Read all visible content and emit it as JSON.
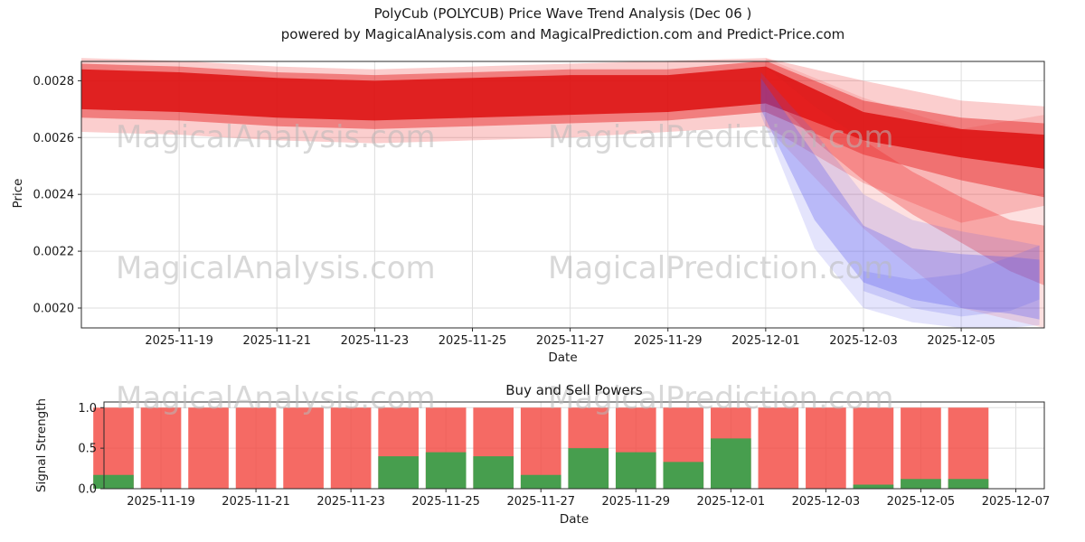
{
  "title": {
    "line1": "PolyCub (POLYCUB) Price Wave Trend Analysis (Dec 06 )",
    "line2": "powered by MagicalAnalysis.com and MagicalPrediction.com and Predict-Price.com"
  },
  "watermarks": {
    "analysis": "MagicalAnalysis.com",
    "prediction": "MagicalPrediction.com"
  },
  "chart_data": [
    {
      "type": "area",
      "title": "PolyCub (POLYCUB) Price Wave Trend Analysis (Dec 06 )",
      "xlabel": "Date",
      "ylabel": "Price",
      "x_unit": "days since 2025-11-17",
      "xlim": [
        0,
        19.7
      ],
      "ylim": [
        0.00193,
        0.002868
      ],
      "grid": true,
      "y_ticks": [
        0.002,
        0.0022,
        0.0024,
        0.0026,
        0.0028
      ],
      "x_ticks": [
        {
          "day": 2,
          "label": "2025-11-19"
        },
        {
          "day": 4,
          "label": "2025-11-21"
        },
        {
          "day": 6,
          "label": "2025-11-23"
        },
        {
          "day": 8,
          "label": "2025-11-25"
        },
        {
          "day": 10,
          "label": "2025-11-27"
        },
        {
          "day": 12,
          "label": "2025-11-29"
        },
        {
          "day": 14,
          "label": "2025-12-01"
        },
        {
          "day": 16,
          "label": "2025-12-03"
        },
        {
          "day": 18,
          "label": "2025-12-05"
        }
      ],
      "bands": [
        {
          "name": "red-outer",
          "color": "#ee2222",
          "opacity": 0.22,
          "x": [
            0,
            2,
            4,
            6,
            8,
            10,
            12,
            14,
            16,
            18,
            19.7
          ],
          "upper": [
            0.00288,
            0.00287,
            0.00285,
            0.00284,
            0.00285,
            0.00286,
            0.00287,
            0.00288,
            0.0028,
            0.00273,
            0.00271
          ],
          "lower": [
            0.00262,
            0.00261,
            0.00259,
            0.00258,
            0.00259,
            0.0026,
            0.00262,
            0.00264,
            0.00244,
            0.0023,
            0.00236
          ]
        },
        {
          "name": "red-fan-wide",
          "color": "#ee2222",
          "opacity": 0.14,
          "x": [
            14,
            16,
            18,
            19.7
          ],
          "upper": [
            0.00288,
            0.00274,
            0.00263,
            0.00268
          ],
          "lower": [
            0.00264,
            0.00228,
            0.002,
            0.00193
          ]
        },
        {
          "name": "red-mid",
          "color": "#e51d1d",
          "opacity": 0.45,
          "x": [
            0,
            2,
            4,
            6,
            8,
            10,
            12,
            14,
            16,
            18,
            19.7
          ],
          "upper": [
            0.00286,
            0.00285,
            0.00283,
            0.00282,
            0.00283,
            0.00284,
            0.00284,
            0.00287,
            0.00273,
            0.00267,
            0.00265
          ],
          "lower": [
            0.00267,
            0.00266,
            0.00264,
            0.00263,
            0.00264,
            0.00265,
            0.00266,
            0.00269,
            0.00254,
            0.00245,
            0.00239
          ]
        },
        {
          "name": "red-core",
          "color": "#dd1111",
          "opacity": 0.85,
          "x": [
            0,
            2,
            4,
            6,
            8,
            10,
            12,
            14,
            16,
            18,
            19.7
          ],
          "upper": [
            0.00284,
            0.00283,
            0.00281,
            0.0028,
            0.00281,
            0.00282,
            0.00282,
            0.00285,
            0.00269,
            0.00263,
            0.00261
          ],
          "lower": [
            0.0027,
            0.00269,
            0.00267,
            0.00266,
            0.00267,
            0.00268,
            0.00269,
            0.00272,
            0.00259,
            0.00253,
            0.00249
          ]
        },
        {
          "name": "red-cross",
          "color": "#ee2222",
          "opacity": 0.3,
          "x": [
            14,
            15,
            16,
            17,
            18,
            19,
            19.7
          ],
          "upper": [
            0.00285,
            0.00271,
            0.00259,
            0.00248,
            0.00239,
            0.00231,
            0.00229
          ],
          "lower": [
            0.00277,
            0.00259,
            0.00245,
            0.00233,
            0.00223,
            0.00213,
            0.00208
          ]
        },
        {
          "name": "blue-wide",
          "color": "#5555ee",
          "opacity": 0.16,
          "x": [
            13.9,
            15,
            16,
            17,
            18,
            19,
            19.6
          ],
          "upper": [
            0.00283,
            0.00262,
            0.0024,
            0.00231,
            0.00227,
            0.00224,
            0.00222
          ],
          "lower": [
            0.00268,
            0.00221,
            0.002,
            0.00195,
            0.00193,
            0.00193,
            0.00194
          ]
        },
        {
          "name": "blue-mid",
          "color": "#5555ee",
          "opacity": 0.3,
          "x": [
            13.9,
            15,
            16,
            17,
            18,
            19,
            19.6
          ],
          "upper": [
            0.00281,
            0.00254,
            0.00229,
            0.00221,
            0.00219,
            0.00218,
            0.00217
          ],
          "lower": [
            0.0027,
            0.00231,
            0.00209,
            0.00203,
            0.002,
            0.00198,
            0.00196
          ]
        },
        {
          "name": "blue-cross",
          "color": "#6666ee",
          "opacity": 0.22,
          "x": [
            16,
            17,
            18,
            19,
            19.6
          ],
          "upper": [
            0.00213,
            0.0021,
            0.00212,
            0.00218,
            0.00222
          ],
          "lower": [
            0.00206,
            0.002,
            0.00197,
            0.00199,
            0.00203
          ]
        }
      ]
    },
    {
      "type": "bar",
      "title": "Buy and Sell Powers",
      "xlabel": "Date",
      "ylabel": "Signal Strength",
      "x_unit": "days since 2025-11-17",
      "xlim": [
        0.8,
        20.6
      ],
      "ylim": [
        0,
        1.07
      ],
      "grid": true,
      "bar_width": 0.85,
      "colors": {
        "sell": "#f2453d",
        "buy": "#3da14d"
      },
      "y_ticks": [
        0.0,
        0.5,
        1.0
      ],
      "x_ticks": [
        {
          "day": 2,
          "label": "2025-11-19"
        },
        {
          "day": 4,
          "label": "2025-11-21"
        },
        {
          "day": 6,
          "label": "2025-11-23"
        },
        {
          "day": 8,
          "label": "2025-11-25"
        },
        {
          "day": 10,
          "label": "2025-11-27"
        },
        {
          "day": 12,
          "label": "2025-11-29"
        },
        {
          "day": 14,
          "label": "2025-12-01"
        },
        {
          "day": 16,
          "label": "2025-12-03"
        },
        {
          "day": 18,
          "label": "2025-12-05"
        },
        {
          "day": 20,
          "label": "2025-12-07"
        }
      ],
      "bars": [
        {
          "day": 1,
          "date": "2025-11-18",
          "sell": 1.0,
          "buy": 0.17
        },
        {
          "day": 2,
          "date": "2025-11-19",
          "sell": 1.0,
          "buy": 0.0
        },
        {
          "day": 3,
          "date": "2025-11-20",
          "sell": 1.0,
          "buy": 0.0
        },
        {
          "day": 4,
          "date": "2025-11-21",
          "sell": 1.0,
          "buy": 0.0
        },
        {
          "day": 5,
          "date": "2025-11-22",
          "sell": 1.0,
          "buy": 0.0
        },
        {
          "day": 6,
          "date": "2025-11-23",
          "sell": 1.0,
          "buy": 0.0
        },
        {
          "day": 7,
          "date": "2025-11-24",
          "sell": 1.0,
          "buy": 0.4
        },
        {
          "day": 8,
          "date": "2025-11-25",
          "sell": 1.0,
          "buy": 0.45
        },
        {
          "day": 9,
          "date": "2025-11-26",
          "sell": 1.0,
          "buy": 0.4
        },
        {
          "day": 10,
          "date": "2025-11-27",
          "sell": 1.0,
          "buy": 0.17
        },
        {
          "day": 11,
          "date": "2025-11-28",
          "sell": 1.0,
          "buy": 0.5
        },
        {
          "day": 12,
          "date": "2025-11-29",
          "sell": 1.0,
          "buy": 0.45
        },
        {
          "day": 13,
          "date": "2025-11-30",
          "sell": 1.0,
          "buy": 0.33
        },
        {
          "day": 14,
          "date": "2025-12-01",
          "sell": 1.0,
          "buy": 0.62
        },
        {
          "day": 15,
          "date": "2025-12-02",
          "sell": 1.0,
          "buy": 0.0
        },
        {
          "day": 16,
          "date": "2025-12-03",
          "sell": 1.0,
          "buy": 0.0
        },
        {
          "day": 17,
          "date": "2025-12-04",
          "sell": 1.0,
          "buy": 0.05
        },
        {
          "day": 18,
          "date": "2025-12-05",
          "sell": 1.0,
          "buy": 0.12
        },
        {
          "day": 19,
          "date": "2025-12-06",
          "sell": 1.0,
          "buy": 0.12
        }
      ]
    }
  ]
}
